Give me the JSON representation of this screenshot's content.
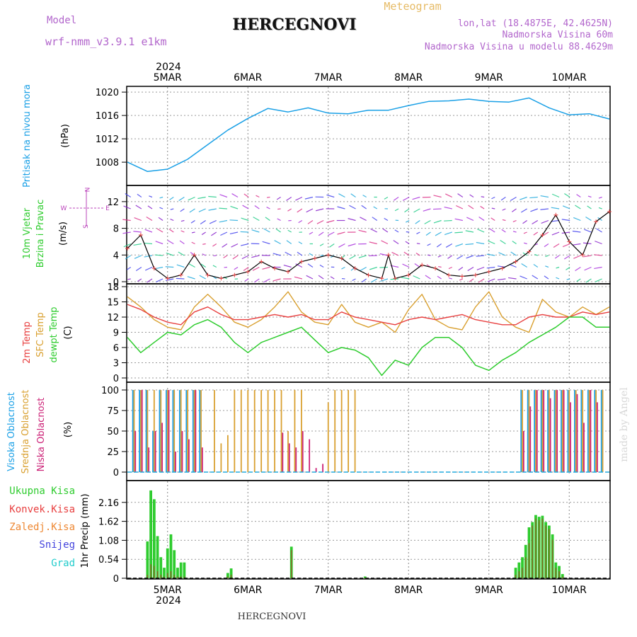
{
  "header": {
    "model_label": "Model",
    "model_name": "wrf-nmm_v3.9.1  e1km",
    "title": "HERCEGNOVI",
    "meteogram": "Meteogram",
    "lonlat": "lon,lat (18.4875E, 42.4625N)",
    "elevation": "Nadmorska Visina 60m",
    "model_elevation": "Nadmorska Visina u modelu 88.4629m"
  },
  "footer": {
    "station": "HERCEGNOVI",
    "watermark": "made by Angel"
  },
  "time_axis": {
    "labels": [
      "5MAR",
      "6MAR",
      "7MAR",
      "8MAR",
      "9MAR",
      "10MAR"
    ],
    "year": "2024"
  },
  "colors": {
    "pressure": "#1aa0e6",
    "t2m": "#e84040",
    "sfc": "#d9a030",
    "dew": "#2ecc2e",
    "high_cloud": "#1aa0e6",
    "mid_cloud": "#d9a030",
    "low_cloud": "#cc2277",
    "precip_total": "#2ecc2e",
    "precip_conv": "#e84040",
    "wind_label": "#2ecc2e",
    "compass": "#bb44bb"
  },
  "panels": {
    "pressure": {
      "ylabel1": "Pritisak na nivou mora",
      "unit": "(hPa)",
      "ticks": [
        "1008",
        "1012",
        "1016",
        "1020"
      ]
    },
    "wind": {
      "ylabel1": "10m Vjetar",
      "ylabel2": "Brzina i Pravac",
      "unit": "(m/s)",
      "ticks": [
        "0",
        "4",
        "8",
        "12"
      ],
      "compass": {
        "n": "N",
        "s": "S",
        "e": "E",
        "w": "W"
      }
    },
    "temp": {
      "ylabel1": "2m Temp",
      "ylabel2": "SFC Temp",
      "ylabel3": "dewpt Temp",
      "unit": "(C)",
      "ticks": [
        "0",
        "3",
        "6",
        "9",
        "12",
        "15",
        "18"
      ]
    },
    "cloud": {
      "ylabel1": "Visoka Oblacnost",
      "ylabel2": "Srednja Oblacnost",
      "ylabel3": "Niska Oblacnost",
      "unit": "(%)",
      "ticks": [
        "0",
        "25",
        "50",
        "75",
        "100"
      ]
    },
    "precip": {
      "legend": [
        "Ukupna Kisa",
        "Konvek.Kisa",
        "Zaledj.Kisa",
        "Snijeg",
        "Grad"
      ],
      "ylabel": "1hr Precip (mm)",
      "ticks": [
        "0",
        "0.54",
        "1.08",
        "1.62",
        "2.16"
      ]
    }
  },
  "chart_data": [
    {
      "type": "line",
      "title": "Pritisak na nivou mora (hPa)",
      "x": [
        0,
        6,
        12,
        18,
        24,
        30,
        36,
        42,
        48,
        54,
        60,
        66,
        72,
        78,
        84,
        90,
        96,
        102,
        108,
        114,
        120,
        126,
        132,
        138,
        144
      ],
      "x_unit": "hours from 2024-03-04 12:00",
      "series": [
        {
          "name": "Pritisak na nivou mora",
          "values": [
            1008,
            1006.4,
            1006.8,
            1008.5,
            1011,
            1013.5,
            1015.5,
            1017.2,
            1016.6,
            1017.3,
            1016.4,
            1016.3,
            1016.9,
            1016.9,
            1017.7,
            1018.4,
            1018.5,
            1018.8,
            1018.4,
            1018.3,
            1019,
            1017.3,
            1016.1,
            1016.3,
            1015.4
          ]
        }
      ],
      "ylim": [
        1004.5,
        1020.5
      ]
    },
    {
      "type": "line",
      "title": "10m Vjetar Brzina i Pravac (m/s)",
      "x": [
        0,
        4,
        8,
        12,
        16,
        20,
        24,
        28,
        32,
        36,
        40,
        44,
        48,
        52,
        56,
        60,
        64,
        68,
        72,
        76,
        78,
        80,
        84,
        88,
        92,
        96,
        100,
        104,
        108,
        112,
        116,
        120,
        124,
        128,
        132,
        136,
        140,
        144
      ],
      "x_unit": "hours from 2024-03-04 12:00",
      "series": [
        {
          "name": "10m Vjetar",
          "values": [
            5,
            7,
            2,
            0.5,
            1,
            4,
            1,
            0.5,
            1,
            1.5,
            3,
            2,
            1.5,
            3,
            3.5,
            4,
            3.5,
            2,
            1,
            0.5,
            4,
            0.5,
            1,
            2.5,
            2,
            1,
            0.8,
            1,
            1.5,
            2,
            3,
            4.5,
            7,
            10,
            6,
            4,
            9,
            10.5
          ]
        }
      ],
      "ylim": [
        0,
        14
      ]
    },
    {
      "type": "line",
      "title": "2m Temp / SFC Temp / dewpt Temp (C)",
      "x": [
        0,
        4,
        8,
        12,
        16,
        20,
        24,
        28,
        32,
        36,
        40,
        44,
        48,
        52,
        56,
        60,
        64,
        68,
        72,
        76,
        80,
        84,
        88,
        92,
        96,
        100,
        104,
        108,
        112,
        116,
        120,
        124,
        128,
        132,
        136,
        140,
        144
      ],
      "x_unit": "hours from 2024-03-04 12:00",
      "series": [
        {
          "name": "2m Temp",
          "values": [
            14.5,
            13.5,
            12,
            11,
            10.5,
            13,
            14,
            12.5,
            11.5,
            11.5,
            12,
            12.5,
            12,
            12.5,
            11.5,
            11.5,
            13,
            12,
            11.5,
            11,
            10.5,
            11.5,
            12,
            11.5,
            12,
            12.5,
            11.5,
            11,
            10.5,
            10.5,
            12,
            12.5,
            12,
            12,
            13,
            12.5,
            13
          ]
        },
        {
          "name": "SFC Temp",
          "values": [
            16,
            14,
            11.5,
            10,
            9.5,
            14,
            16.5,
            14,
            11,
            10,
            11.5,
            14,
            17,
            13,
            11,
            10.5,
            14.5,
            11,
            10,
            11,
            9,
            13.5,
            16.5,
            11.5,
            10,
            9.5,
            14,
            17,
            12,
            10,
            9,
            15.5,
            13,
            12,
            14,
            12.5,
            14
          ]
        },
        {
          "name": "dewpt Temp",
          "values": [
            8,
            5,
            7,
            9,
            8.5,
            10.5,
            11.5,
            10,
            7,
            5,
            7,
            8,
            9,
            10,
            7.5,
            5,
            6,
            5.5,
            4,
            0.5,
            3.5,
            2.5,
            6,
            8,
            8,
            6,
            2.5,
            1.5,
            3.5,
            5,
            7,
            8.5,
            10,
            12,
            12,
            10,
            10
          ]
        }
      ],
      "ylim": [
        0,
        18
      ]
    },
    {
      "type": "bar",
      "title": "Visoka / Srednja / Niska Oblacnost (%)",
      "x": [
        2,
        4,
        6,
        8,
        10,
        12,
        14,
        16,
        18,
        20,
        22,
        26,
        28,
        30,
        32,
        34,
        36,
        38,
        40,
        42,
        44,
        46,
        48,
        50,
        52,
        54,
        56,
        58,
        60,
        62,
        64,
        66,
        68,
        70,
        72,
        74,
        76,
        118,
        120,
        122,
        124,
        126,
        128,
        130,
        132,
        134,
        136,
        138,
        140,
        142
      ],
      "x_unit": "hours from 2024-03-04 12:00",
      "series": [
        {
          "name": "Visoka Oblacnost",
          "values": [
            100,
            100,
            100,
            50,
            100,
            100,
            100,
            100,
            100,
            100,
            100,
            0,
            0,
            0,
            0,
            0,
            0,
            0,
            0,
            0,
            0,
            0,
            0,
            0,
            0,
            0,
            0,
            0,
            0,
            0,
            0,
            0,
            0,
            0,
            0,
            0,
            0,
            100,
            100,
            100,
            100,
            100,
            100,
            100,
            100,
            100,
            100,
            100,
            100,
            100
          ]
        },
        {
          "name": "Srednja Oblacnost",
          "values": [
            100,
            100,
            100,
            100,
            100,
            100,
            100,
            100,
            100,
            100,
            100,
            100,
            35,
            45,
            100,
            100,
            100,
            100,
            100,
            100,
            100,
            100,
            50,
            100,
            100,
            0,
            0,
            0,
            85,
            100,
            100,
            100,
            100,
            0,
            0,
            0,
            0,
            100,
            100,
            100,
            100,
            100,
            100,
            100,
            100,
            100,
            100,
            100,
            100,
            100
          ]
        },
        {
          "name": "Niska Oblacnost",
          "values": [
            50,
            100,
            30,
            50,
            60,
            100,
            25,
            50,
            40,
            100,
            30,
            0,
            0,
            0,
            0,
            0,
            0,
            0,
            0,
            0,
            0,
            48,
            35,
            30,
            50,
            40,
            5,
            10,
            0,
            0,
            0,
            0,
            0,
            0,
            0,
            0,
            0,
            50,
            80,
            100,
            100,
            90,
            100,
            100,
            85,
            95,
            60,
            100,
            85,
            0
          ]
        }
      ],
      "ylim": [
        0,
        100
      ]
    },
    {
      "type": "bar",
      "title": "1hr Precip (mm)",
      "x": [
        6,
        7,
        8,
        9,
        10,
        11,
        12,
        13,
        14,
        15,
        16,
        17,
        30,
        31,
        49,
        71,
        116,
        117,
        118,
        119,
        120,
        121,
        122,
        123,
        124,
        125,
        126,
        127,
        128,
        129,
        130
      ],
      "x_unit": "hours from 2024-03-04 12:00",
      "series": [
        {
          "name": "Ukupna Kisa",
          "values": [
            1.05,
            2.5,
            2.25,
            1.2,
            0.6,
            0.3,
            0.85,
            1.25,
            0.8,
            0.3,
            0.45,
            0.45,
            0.15,
            0.28,
            0.9,
            0.05,
            0.3,
            0.45,
            0.6,
            0.95,
            1.45,
            1.6,
            1.8,
            1.75,
            1.78,
            1.6,
            1.5,
            1.25,
            0.45,
            0.35,
            0.12
          ]
        },
        {
          "name": "Konvek.Kisa",
          "values": [
            0.1,
            0.4,
            0.35,
            0.2,
            0.1,
            0.05,
            0.15,
            0.2,
            0.1,
            0.05,
            0.05,
            0.05,
            0.05,
            0.1,
            0.8,
            0.02,
            0.1,
            0.2,
            0.3,
            0.6,
            1.0,
            1.5,
            1.7,
            1.65,
            1.7,
            1.5,
            1.4,
            1.1,
            0.3,
            0.2,
            0.05
          ]
        }
      ],
      "ylim": [
        0,
        2.7
      ]
    }
  ]
}
